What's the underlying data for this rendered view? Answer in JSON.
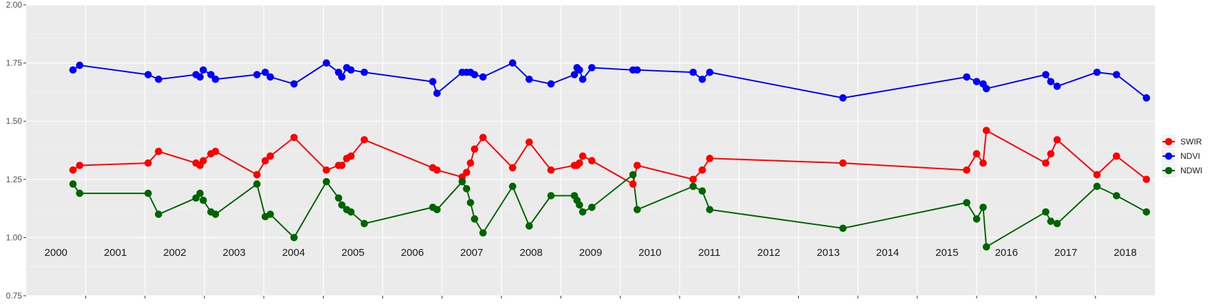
{
  "chart_data": {
    "type": "line",
    "xlim": [
      "2000-01-01",
      "2019-01-01"
    ],
    "ylim": [
      0.75,
      2.0
    ],
    "y_ticks": [
      "0.75",
      "1.00",
      "1.25",
      "1.50",
      "1.75",
      "2.00"
    ],
    "grid": true,
    "legend_position": "right",
    "year_labels": [
      "2000",
      "2001",
      "2002",
      "2003",
      "2004",
      "2005",
      "2006",
      "2007",
      "2008",
      "2009",
      "2010",
      "2011",
      "2012",
      "2013",
      "2014",
      "2015",
      "2016",
      "2017",
      "2018"
    ],
    "dates": [
      "2000-10-15",
      "2000-11-25",
      "2002-01-20",
      "2002-03-25",
      "2002-11-10",
      "2002-12-05",
      "2002-12-25",
      "2003-02-10",
      "2003-03-10",
      "2003-11-20",
      "2004-01-10",
      "2004-02-10",
      "2004-07-05",
      "2005-01-20",
      "2005-04-05",
      "2005-04-25",
      "2005-05-25",
      "2005-06-20",
      "2005-09-10",
      "2006-11-05",
      "2006-12-01",
      "2007-05-05",
      "2007-06-01",
      "2007-06-25",
      "2007-07-20",
      "2007-09-10",
      "2008-03-10",
      "2008-06-20",
      "2008-11-01",
      "2009-03-25",
      "2009-04-10",
      "2009-04-25",
      "2009-05-15",
      "2009-07-10",
      "2010-03-20",
      "2010-04-15",
      "2011-03-25",
      "2011-05-20",
      "2011-07-05",
      "2013-10-01",
      "2015-11-01",
      "2016-01-01",
      "2016-02-10",
      "2016-03-01",
      "2017-03-01",
      "2017-04-01",
      "2017-05-10",
      "2018-01-10",
      "2018-05-10",
      "2018-11-10"
    ],
    "series": [
      {
        "name": "SWIR",
        "color": "#ff0000",
        "values": [
          1.29,
          1.31,
          1.32,
          1.37,
          1.32,
          1.31,
          1.33,
          1.36,
          1.37,
          1.27,
          1.33,
          1.35,
          1.43,
          1.29,
          1.31,
          1.31,
          1.34,
          1.35,
          1.42,
          1.3,
          1.29,
          1.26,
          1.28,
          1.32,
          1.38,
          1.43,
          1.3,
          1.41,
          1.29,
          1.31,
          1.31,
          1.32,
          1.35,
          1.33,
          1.23,
          1.31,
          1.25,
          1.29,
          1.34,
          1.32,
          1.29,
          1.36,
          1.32,
          1.46,
          1.32,
          1.36,
          1.42,
          1.27,
          1.35,
          1.25
        ]
      },
      {
        "name": "NDVI",
        "color": "#0000ff",
        "values": [
          1.72,
          1.74,
          1.7,
          1.68,
          1.7,
          1.69,
          1.72,
          1.7,
          1.68,
          1.7,
          1.71,
          1.69,
          1.66,
          1.75,
          1.71,
          1.69,
          1.73,
          1.72,
          1.71,
          1.67,
          1.62,
          1.71,
          1.71,
          1.71,
          1.7,
          1.69,
          1.75,
          1.68,
          1.66,
          1.7,
          1.73,
          1.72,
          1.68,
          1.73,
          1.72,
          1.72,
          1.71,
          1.68,
          1.71,
          1.6,
          1.69,
          1.67,
          1.66,
          1.64,
          1.7,
          1.67,
          1.65,
          1.71,
          1.7,
          1.6
        ]
      },
      {
        "name": "NDWI",
        "color": "#006400",
        "values": [
          1.23,
          1.19,
          1.19,
          1.1,
          1.17,
          1.19,
          1.16,
          1.11,
          1.1,
          1.23,
          1.09,
          1.1,
          1.0,
          1.24,
          1.17,
          1.14,
          1.12,
          1.11,
          1.06,
          1.13,
          1.12,
          1.24,
          1.21,
          1.15,
          1.08,
          1.02,
          1.22,
          1.05,
          1.18,
          1.18,
          1.16,
          1.14,
          1.11,
          1.13,
          1.27,
          1.12,
          1.22,
          1.2,
          1.12,
          1.04,
          1.15,
          1.08,
          1.13,
          0.96,
          1.11,
          1.07,
          1.06,
          1.22,
          1.18,
          1.11
        ]
      }
    ]
  }
}
